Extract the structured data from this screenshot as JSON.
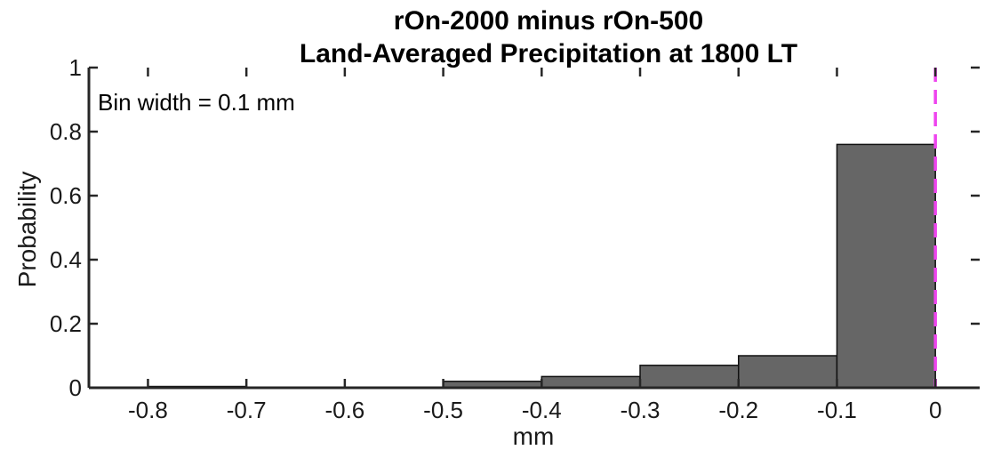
{
  "chart_data": {
    "type": "bar",
    "title": "rOn-2000 minus rOn-500",
    "subtitle": "Land-Averaged Precipitation at 1800 LT",
    "xlabel": "mm",
    "ylabel": "Probability",
    "annotation": "Bin width = 0.1 mm",
    "xlim": [
      -0.86,
      0.045
    ],
    "ylim": [
      0,
      1
    ],
    "xticks": [
      -0.8,
      -0.7,
      -0.6,
      -0.5,
      -0.4,
      -0.3,
      -0.2,
      -0.1,
      0
    ],
    "xtick_labels": [
      "-0.8",
      "-0.7",
      "-0.6",
      "-0.5",
      "-0.4",
      "-0.3",
      "-0.2",
      "-0.1",
      "0"
    ],
    "yticks": [
      0,
      0.2,
      0.4,
      0.6,
      0.8,
      1
    ],
    "ytick_labels": [
      "0",
      "0.2",
      "0.4",
      "0.6",
      "0.8",
      "1"
    ],
    "bin_width": 0.1,
    "bins": [
      {
        "x0": -0.8,
        "x1": -0.7,
        "value": 0.004
      },
      {
        "x0": -0.7,
        "x1": -0.6,
        "value": 0
      },
      {
        "x0": -0.6,
        "x1": -0.5,
        "value": 0
      },
      {
        "x0": -0.5,
        "x1": -0.4,
        "value": 0.02
      },
      {
        "x0": -0.4,
        "x1": -0.3,
        "value": 0.035
      },
      {
        "x0": -0.3,
        "x1": -0.2,
        "value": 0.07
      },
      {
        "x0": -0.2,
        "x1": -0.1,
        "value": 0.1
      },
      {
        "x0": -0.1,
        "x1": 0.0,
        "value": 0.76
      }
    ],
    "reference_line": {
      "x": 0,
      "style": "dashed",
      "color": "#ee44ee"
    },
    "bar_color": "#666666",
    "bar_edge_color": "#111111",
    "grid": false
  }
}
